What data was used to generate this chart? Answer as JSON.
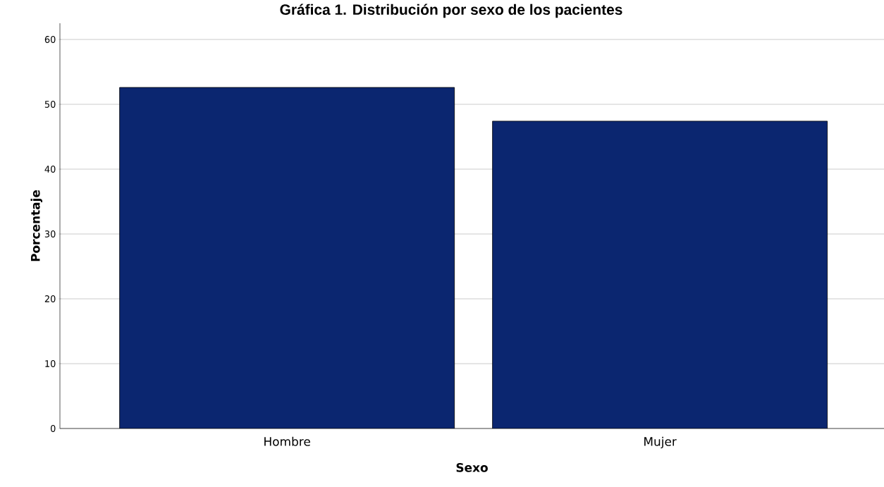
{
  "chart_data": {
    "type": "bar",
    "title": "Gráfica 1. Distribución por sexo de los pacientes",
    "xlabel": "Sexo",
    "ylabel": "Porcentaje",
    "categories": [
      "Hombre",
      "Mujer"
    ],
    "values": [
      52.6,
      47.4
    ],
    "color": "#0b2670",
    "ylim": [
      0,
      62.5
    ],
    "yticks": [
      0,
      10,
      20,
      30,
      40,
      50,
      60
    ],
    "grid": "y"
  }
}
